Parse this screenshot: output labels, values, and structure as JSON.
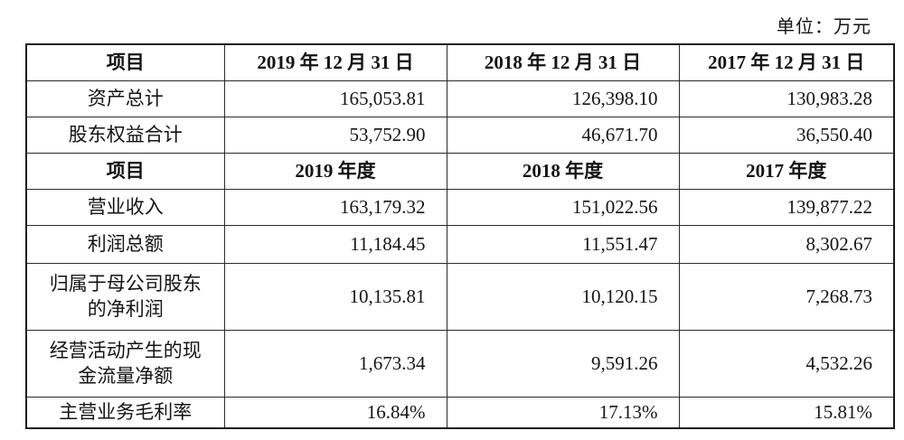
{
  "unit_label": "单位：万元",
  "table": {
    "sections": [
      {
        "header": [
          "项目",
          "2019 年 12 月 31 日",
          "2018 年 12 月 31 日",
          "2017 年 12 月 31 日"
        ],
        "rows": [
          {
            "label": "资产总计",
            "values": [
              "165,053.81",
              "126,398.10",
              "130,983.28"
            ]
          },
          {
            "label": "股东权益合计",
            "values": [
              "53,752.90",
              "46,671.70",
              "36,550.40"
            ]
          }
        ]
      },
      {
        "header": [
          "项目",
          "2019 年度",
          "2018 年度",
          "2017 年度"
        ],
        "rows": [
          {
            "label": "营业收入",
            "values": [
              "163,179.32",
              "151,022.56",
              "139,877.22"
            ]
          },
          {
            "label": "利润总额",
            "values": [
              "11,184.45",
              "11,551.47",
              "8,302.67"
            ]
          },
          {
            "label": "归属于母公司股东\n的净利润",
            "values": [
              "10,135.81",
              "10,120.15",
              "7,268.73"
            ]
          },
          {
            "label": "经营活动产生的现\n金流量净额",
            "values": [
              "1,673.34",
              "9,591.26",
              "4,532.26"
            ]
          },
          {
            "label": "主营业务毛利率",
            "values": [
              "16.84%",
              "17.13%",
              "15.81%"
            ]
          }
        ]
      }
    ]
  }
}
